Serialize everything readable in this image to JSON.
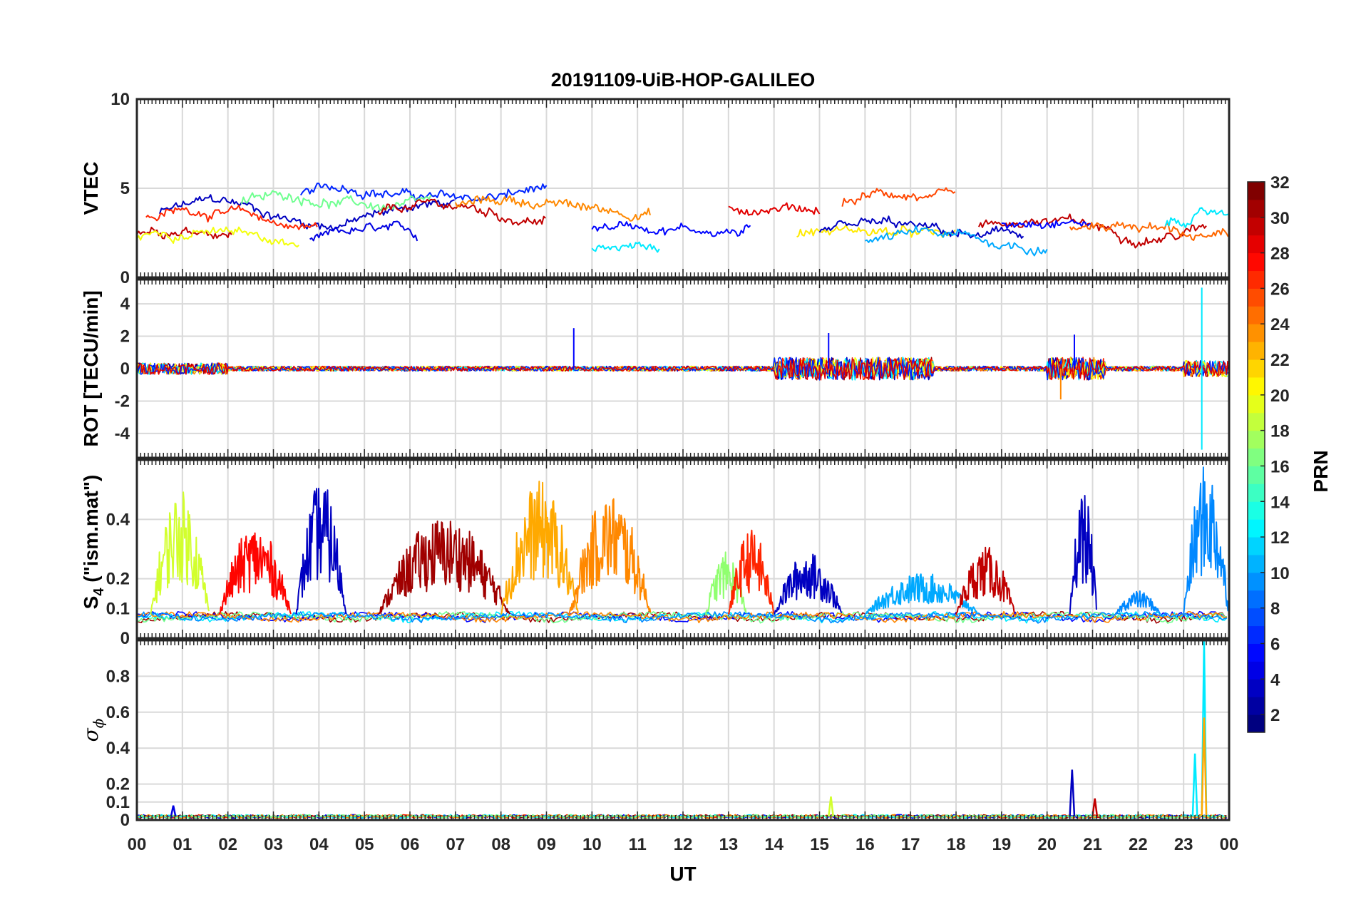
{
  "chart_data": {
    "type": "line",
    "title": "20191109-UiB-HOP-GALILEO",
    "xlabel": "UT",
    "x_ticks": [
      "00",
      "01",
      "02",
      "03",
      "04",
      "05",
      "06",
      "07",
      "08",
      "09",
      "10",
      "11",
      "12",
      "13",
      "14",
      "15",
      "16",
      "17",
      "18",
      "19",
      "20",
      "21",
      "22",
      "23",
      "00"
    ],
    "xlim_hours": [
      0,
      24
    ],
    "grid": true,
    "colorbar": {
      "label": "PRN",
      "range": [
        1,
        32
      ],
      "ticks": [
        "2",
        "4",
        "6",
        "8",
        "10",
        "12",
        "14",
        "16",
        "18",
        "20",
        "22",
        "24",
        "26",
        "28",
        "30",
        "32"
      ],
      "colormap": "jet"
    },
    "panels": [
      {
        "id": "vtec",
        "ylabel": "VTEC",
        "ylim": [
          0,
          10
        ],
        "ytick_labels": [
          "0",
          "5",
          "10"
        ],
        "series_summary": [
          {
            "prn": 3,
            "start": 0.5,
            "end": 7.0,
            "base": 3.6,
            "amp": 0.9
          },
          {
            "prn": 6,
            "start": 3.6,
            "end": 9.0,
            "base": 4.7,
            "amp": 0.6
          },
          {
            "prn": 4,
            "start": 3.8,
            "end": 6.2,
            "base": 2.0,
            "amp": 0.8
          },
          {
            "prn": 30,
            "start": 0.0,
            "end": 2.1,
            "base": 2.5,
            "amp": 0.6
          },
          {
            "prn": 27,
            "start": 0.2,
            "end": 4.0,
            "base": 3.3,
            "amp": 0.8
          },
          {
            "prn": 20,
            "start": 0.0,
            "end": 3.6,
            "base": 2.3,
            "amp": 0.5
          },
          {
            "prn": 16,
            "start": 2.3,
            "end": 6.5,
            "base": 4.2,
            "amp": 0.5
          },
          {
            "prn": 30,
            "start": 5.3,
            "end": 9.0,
            "base": 3.6,
            "amp": 0.6
          },
          {
            "prn": 24,
            "start": 7.0,
            "end": 11.3,
            "base": 4.0,
            "amp": 0.5
          },
          {
            "prn": 12,
            "start": 10.0,
            "end": 11.5,
            "base": 1.5,
            "amp": 0.3
          },
          {
            "prn": 5,
            "start": 10.0,
            "end": 13.5,
            "base": 2.8,
            "amp": 0.3
          },
          {
            "prn": 29,
            "start": 13.0,
            "end": 15.0,
            "base": 3.8,
            "amp": 0.6
          },
          {
            "prn": 21,
            "start": 14.5,
            "end": 18.0,
            "base": 2.4,
            "amp": 0.4
          },
          {
            "prn": 26,
            "start": 15.5,
            "end": 18.0,
            "base": 4.2,
            "amp": 0.9
          },
          {
            "prn": 3,
            "start": 15.0,
            "end": 19.5,
            "base": 2.5,
            "amp": 0.5
          },
          {
            "prn": 10,
            "start": 16.0,
            "end": 20.0,
            "base": 2.0,
            "amp": 0.5
          },
          {
            "prn": 30,
            "start": 18.5,
            "end": 23.5,
            "base": 2.8,
            "amp": 0.6
          },
          {
            "prn": 5,
            "start": 19.0,
            "end": 21.0,
            "base": 3.0,
            "amp": 0.9
          },
          {
            "prn": 25,
            "start": 20.5,
            "end": 24.0,
            "base": 2.6,
            "amp": 0.7
          },
          {
            "prn": 12,
            "start": 22.6,
            "end": 24.0,
            "base": 3.0,
            "amp": 1.0
          }
        ]
      },
      {
        "id": "rot",
        "ylabel": "ROT [TECU/min]",
        "ylim": [
          -5.5,
          5.5
        ],
        "ytick_labels": [
          "-4",
          "-2",
          "0",
          "2",
          "4"
        ],
        "peaks": [
          {
            "time": 9.6,
            "value": 2.5
          },
          {
            "time": 15.2,
            "value": 2.2
          },
          {
            "time": 20.3,
            "value": -1.9
          },
          {
            "time": 20.6,
            "value": 2.1
          },
          {
            "time": 23.4,
            "value": 5.0
          },
          {
            "time": 23.4,
            "value": -5.0
          }
        ]
      },
      {
        "id": "s4",
        "ylabel": "S",
        "ylabel_subscript": "4",
        "ylabel_suffix": " (\"ism.mat\")",
        "ylim": [
          0,
          0.6
        ],
        "ytick_labels": [
          "0",
          "0.1",
          "0.2",
          "0.4"
        ],
        "bursts": [
          {
            "start": 0.3,
            "end": 1.6,
            "peak": 0.5,
            "prn": 19
          },
          {
            "start": 1.8,
            "end": 3.4,
            "peak": 0.38,
            "prn": 28
          },
          {
            "start": 3.5,
            "end": 4.6,
            "peak": 0.53,
            "prn": 3
          },
          {
            "start": 5.3,
            "end": 8.2,
            "peak": 0.41,
            "prn": 31
          },
          {
            "start": 8.0,
            "end": 9.7,
            "peak": 0.53,
            "prn": 23
          },
          {
            "start": 9.5,
            "end": 11.3,
            "peak": 0.49,
            "prn": 24
          },
          {
            "start": 12.5,
            "end": 13.4,
            "peak": 0.29,
            "prn": 17
          },
          {
            "start": 13.0,
            "end": 14.0,
            "peak": 0.37,
            "prn": 27
          },
          {
            "start": 14.0,
            "end": 15.5,
            "peak": 0.29,
            "prn": 3
          },
          {
            "start": 16.0,
            "end": 18.5,
            "peak": 0.22,
            "prn": 10
          },
          {
            "start": 18.0,
            "end": 19.3,
            "peak": 0.31,
            "prn": 30
          },
          {
            "start": 20.5,
            "end": 21.1,
            "peak": 0.5,
            "prn": 3
          },
          {
            "start": 21.5,
            "end": 22.5,
            "peak": 0.16,
            "prn": 9
          },
          {
            "start": 23.0,
            "end": 24.0,
            "peak": 0.59,
            "prn": 9
          }
        ]
      },
      {
        "id": "sigma_phi",
        "ylabel_symbol": "σ",
        "ylabel_subscript": "ϕ",
        "ylim": [
          0,
          1.0
        ],
        "ytick_labels": [
          "0",
          "0.1",
          "0.2",
          "0.4",
          "0.6",
          "0.8"
        ],
        "spikes": [
          {
            "time": 0.8,
            "value": 0.08,
            "prn": 4
          },
          {
            "time": 15.25,
            "value": 0.13,
            "prn": 19
          },
          {
            "time": 20.55,
            "value": 0.28,
            "prn": 3
          },
          {
            "time": 21.05,
            "value": 0.12,
            "prn": 30
          },
          {
            "time": 23.25,
            "value": 0.37,
            "prn": 12
          },
          {
            "time": 23.45,
            "value": 1.0,
            "prn": 12
          },
          {
            "time": 23.45,
            "value": 0.57,
            "prn": 23
          }
        ]
      }
    ]
  }
}
